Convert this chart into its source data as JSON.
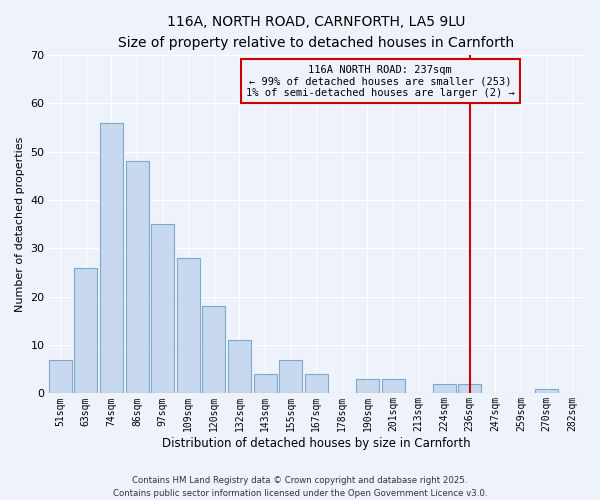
{
  "title": "116A, NORTH ROAD, CARNFORTH, LA5 9LU",
  "subtitle": "Size of property relative to detached houses in Carnforth",
  "xlabel": "Distribution of detached houses by size in Carnforth",
  "ylabel": "Number of detached properties",
  "categories": [
    "51sqm",
    "63sqm",
    "74sqm",
    "86sqm",
    "97sqm",
    "109sqm",
    "120sqm",
    "132sqm",
    "143sqm",
    "155sqm",
    "167sqm",
    "178sqm",
    "190sqm",
    "201sqm",
    "213sqm",
    "224sqm",
    "236sqm",
    "247sqm",
    "259sqm",
    "270sqm",
    "282sqm"
  ],
  "values": [
    7,
    26,
    56,
    48,
    35,
    28,
    18,
    11,
    4,
    7,
    4,
    0,
    3,
    3,
    0,
    2,
    2,
    0,
    0,
    1,
    0
  ],
  "bar_color": "#c8d8ee",
  "bar_edge_color": "#7aaacc",
  "vline_x": 16,
  "vline_color": "#cc0000",
  "annotation_text": "116A NORTH ROAD: 237sqm\n← 99% of detached houses are smaller (253)\n1% of semi-detached houses are larger (2) →",
  "annotation_box_edge": "#cc0000",
  "ylim": [
    0,
    70
  ],
  "yticks": [
    0,
    10,
    20,
    30,
    40,
    50,
    60,
    70
  ],
  "footer_line1": "Contains HM Land Registry data © Crown copyright and database right 2025.",
  "footer_line2": "Contains public sector information licensed under the Open Government Licence v3.0.",
  "bg_color": "#eef2fb",
  "grid_color": "#ffffff",
  "title_fontsize": 10,
  "subtitle_fontsize": 9
}
